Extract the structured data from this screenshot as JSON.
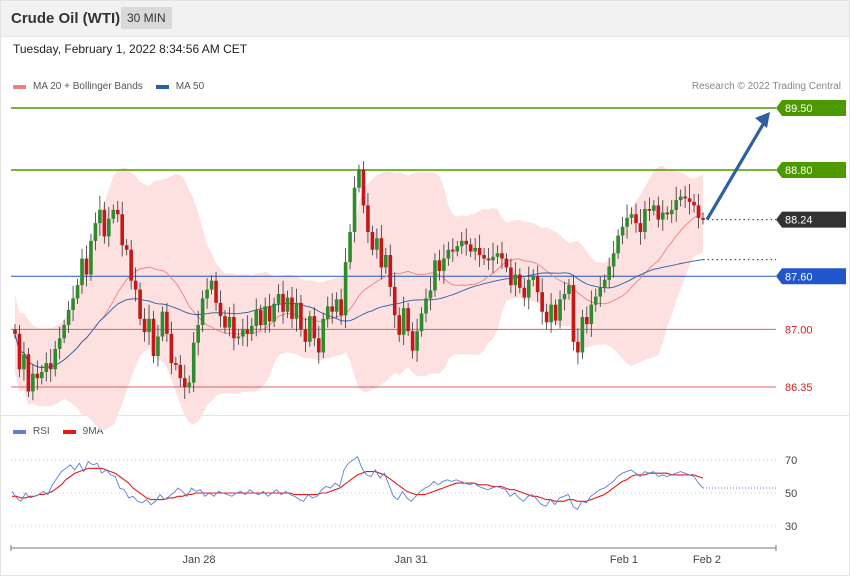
{
  "header": {
    "title": "Crude Oil (WTI)",
    "interval": "30 MIN"
  },
  "datetime": "Tuesday, February 1, 2022 8:34:56 AM CET",
  "legend": [
    {
      "label": "MA 20 + Bollinger Bands",
      "color": "#f08080"
    },
    {
      "label": "MA 50",
      "color": "#2c5fa0"
    }
  ],
  "copyright": "Research © 2022 Trading Central",
  "rsi_legend": [
    {
      "label": "RSI",
      "color": "#5b7fd6"
    },
    {
      "label": "9MA",
      "color": "#e31b1b"
    }
  ],
  "colors": {
    "up": "#2e8b2e",
    "down": "#c41818",
    "bands": "#fde0e0",
    "ma20": "#f08080",
    "ma50": "#2c5fa0",
    "resistance": "#4c9a00",
    "support": "#2255cc",
    "pivot": "#e06060",
    "current": "#333333"
  },
  "chart_data": [
    {
      "type": "candlestick",
      "price_axis_range": [
        86.0,
        89.7
      ],
      "levels": [
        {
          "label": "89.50",
          "value": 89.5,
          "kind": "resistance"
        },
        {
          "label": "88.80",
          "value": 88.8,
          "kind": "resistance"
        },
        {
          "label": "88.24",
          "value": 88.24,
          "kind": "current"
        },
        {
          "label": "87.60",
          "value": 87.6,
          "kind": "support"
        },
        {
          "label": "87.00",
          "value": 87.0,
          "kind": "pivot"
        },
        {
          "label": "86.35",
          "value": 86.35,
          "kind": "pivot"
        }
      ],
      "x_tick_labels": [
        "Jan 28",
        "Jan 31",
        "Feb 1",
        "Feb 2"
      ],
      "forecast_target": 89.5,
      "closes": [
        86.95,
        86.55,
        86.72,
        86.3,
        86.5,
        86.45,
        86.52,
        86.62,
        86.55,
        86.78,
        86.9,
        87.05,
        87.22,
        87.35,
        87.5,
        87.8,
        87.62,
        88.0,
        88.2,
        88.35,
        88.05,
        88.25,
        88.35,
        88.3,
        87.95,
        87.9,
        87.55,
        87.45,
        87.12,
        86.97,
        87.12,
        86.7,
        86.92,
        87.2,
        86.95,
        86.62,
        86.6,
        86.45,
        86.35,
        86.4,
        86.85,
        87.05,
        87.35,
        87.45,
        87.55,
        87.3,
        87.15,
        87.02,
        87.14,
        86.9,
        86.92,
        87.0,
        86.95,
        87.04,
        87.22,
        87.05,
        87.26,
        87.09,
        87.29,
        87.4,
        87.2,
        87.36,
        87.12,
        87.3,
        87.0,
        86.86,
        87.15,
        86.9,
        86.74,
        87.12,
        87.26,
        87.2,
        87.34,
        87.16,
        87.76,
        88.1,
        88.6,
        88.8,
        88.4,
        88.1,
        87.9,
        88.03,
        87.7,
        87.84,
        87.48,
        87.16,
        86.94,
        87.24,
        86.98,
        86.76,
        86.98,
        87.18,
        87.35,
        87.44,
        87.78,
        87.66,
        87.8,
        87.9,
        87.88,
        87.94,
        88.0,
        87.96,
        87.88,
        87.92,
        87.84,
        87.8,
        87.78,
        87.82,
        87.86,
        87.8,
        87.7,
        87.5,
        87.62,
        87.47,
        87.36,
        87.56,
        87.6,
        87.42,
        87.2,
        87.08,
        87.28,
        87.1,
        87.34,
        87.4,
        87.5,
        86.86,
        86.74,
        87.14,
        87.06,
        87.28,
        87.37,
        87.47,
        87.56,
        87.71,
        87.86,
        88.06,
        88.16,
        88.26,
        88.3,
        88.2,
        88.1,
        88.36,
        88.34,
        88.4,
        88.24,
        88.32,
        88.3,
        88.35,
        88.46,
        88.5,
        88.48,
        88.44,
        88.4,
        88.26,
        88.24
      ]
    },
    {
      "type": "line",
      "series": [
        {
          "name": "RSI"
        },
        {
          "name": "9MA"
        }
      ],
      "ylim": [
        25,
        75
      ],
      "y_tick_labels": [
        "70",
        "50",
        "30"
      ],
      "rsi": [
        51,
        47,
        45,
        50,
        47,
        48,
        49,
        51,
        49,
        55,
        59,
        63,
        65,
        67,
        64,
        68,
        63,
        69,
        67,
        68,
        62,
        64,
        61,
        60,
        53,
        52,
        47,
        48,
        45,
        44,
        46,
        43,
        45,
        49,
        46,
        48,
        50,
        53,
        51,
        48,
        53,
        51,
        52,
        48,
        50,
        48,
        51,
        50,
        49,
        48,
        50,
        51,
        49,
        52,
        50,
        49,
        51,
        48,
        50,
        52,
        49,
        51,
        49,
        48,
        46,
        45,
        49,
        47,
        48,
        52,
        54,
        53,
        56,
        54,
        64,
        68,
        70,
        72,
        65,
        61,
        60,
        64,
        59,
        62,
        55,
        48,
        46,
        51,
        47,
        45,
        48,
        51,
        53,
        54,
        57,
        55,
        57,
        58,
        57,
        58,
        57,
        56,
        55,
        56,
        54,
        53,
        52,
        53,
        54,
        53,
        52,
        48,
        50,
        47,
        45,
        48,
        49,
        46,
        43,
        42,
        46,
        43,
        47,
        48,
        49,
        42,
        40,
        45,
        44,
        48,
        50,
        52,
        53,
        55,
        57,
        60,
        62,
        63,
        64,
        62,
        60,
        63,
        62,
        63,
        60,
        61,
        60,
        61,
        62,
        63,
        62,
        61,
        60,
        56,
        53
      ],
      "ma9": [
        48,
        48,
        47,
        47,
        48,
        48,
        49,
        49,
        50,
        51,
        53,
        55,
        58,
        60,
        62,
        63,
        64,
        65,
        65,
        65,
        65,
        64,
        63,
        62,
        60,
        58,
        56,
        53,
        51,
        49,
        47,
        46,
        46,
        46,
        46,
        47,
        47,
        48,
        48,
        49,
        49,
        50,
        50,
        50,
        50,
        50,
        50,
        50,
        50,
        50,
        50,
        50,
        50,
        50,
        50,
        50,
        50,
        50,
        50,
        50,
        50,
        50,
        50,
        49,
        49,
        49,
        49,
        49,
        49,
        50,
        50,
        51,
        52,
        53,
        55,
        57,
        59,
        61,
        62,
        63,
        63,
        63,
        62,
        61,
        59,
        57,
        55,
        53,
        51,
        50,
        49,
        49,
        49,
        50,
        51,
        52,
        53,
        54,
        55,
        56,
        56,
        56,
        56,
        56,
        55,
        55,
        55,
        54,
        54,
        54,
        53,
        52,
        52,
        51,
        50,
        49,
        48,
        48,
        47,
        46,
        46,
        45,
        45,
        45,
        46,
        46,
        45,
        45,
        45,
        46,
        47,
        48,
        49,
        51,
        53,
        55,
        57,
        58,
        60,
        61,
        61,
        61,
        62,
        62,
        62,
        62,
        62,
        61,
        61,
        61,
        61,
        61,
        61,
        60,
        59
      ]
    }
  ]
}
